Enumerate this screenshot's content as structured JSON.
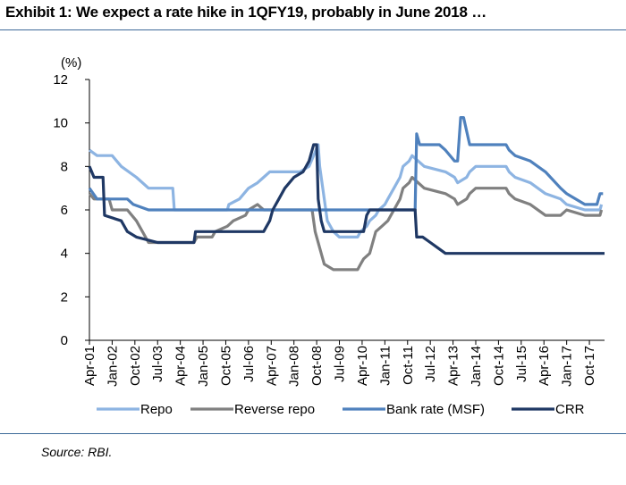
{
  "header": {
    "title": "Exhibit 1:  We expect a rate hike in 1QFY19, probably in June 2018 …"
  },
  "footer": {
    "source": "Source: RBI."
  },
  "chart_data": {
    "type": "line",
    "title": "Exhibit 1:  We expect a rate hike in 1QFY19, probably in June 2018 …",
    "unit_label": "(%)",
    "xlabel": "",
    "ylabel": "",
    "ylim": [
      0,
      12
    ],
    "yticks": [
      "0",
      "2",
      "4",
      "6",
      "8",
      "10",
      "12"
    ],
    "xlim": [
      2001.25,
      2018.25
    ],
    "xtick_labels": [
      "Apr-01",
      "Jan-02",
      "Oct-02",
      "Jul-03",
      "Apr-04",
      "Jan-05",
      "Oct-05",
      "Jul-06",
      "Apr-07",
      "Jan-08",
      "Oct-08",
      "Jul-09",
      "Apr-10",
      "Jan-11",
      "Oct-11",
      "Jul-12",
      "Apr-13",
      "Jan-14",
      "Oct-14",
      "Jul-15",
      "Apr-16",
      "Jan-17",
      "Oct-17"
    ],
    "grid": false,
    "legend_position": "bottom",
    "series": [
      {
        "name": "Repo",
        "color": "#8db4e2",
        "points": [
          [
            2001.25,
            8.75
          ],
          [
            2001.5,
            8.5
          ],
          [
            2002.0,
            8.5
          ],
          [
            2002.3,
            8.0
          ],
          [
            2002.8,
            7.5
          ],
          [
            2003.2,
            7.0
          ],
          [
            2004.0,
            7.0
          ],
          [
            2004.05,
            6.0
          ],
          [
            2005.8,
            6.0
          ],
          [
            2005.85,
            6.25
          ],
          [
            2006.2,
            6.5
          ],
          [
            2006.5,
            7.0
          ],
          [
            2006.8,
            7.25
          ],
          [
            2007.0,
            7.5
          ],
          [
            2007.2,
            7.75
          ],
          [
            2008.2,
            7.75
          ],
          [
            2008.5,
            8.0
          ],
          [
            2008.65,
            8.5
          ],
          [
            2008.8,
            9.0
          ],
          [
            2008.85,
            8.0
          ],
          [
            2008.9,
            7.5
          ],
          [
            2009.0,
            6.5
          ],
          [
            2009.1,
            5.5
          ],
          [
            2009.3,
            5.0
          ],
          [
            2009.5,
            4.75
          ],
          [
            2010.1,
            4.75
          ],
          [
            2010.2,
            5.0
          ],
          [
            2010.4,
            5.25
          ],
          [
            2010.5,
            5.5
          ],
          [
            2010.7,
            5.75
          ],
          [
            2010.8,
            6.0
          ],
          [
            2011.0,
            6.25
          ],
          [
            2011.1,
            6.5
          ],
          [
            2011.3,
            7.0
          ],
          [
            2011.5,
            7.5
          ],
          [
            2011.6,
            8.0
          ],
          [
            2011.8,
            8.25
          ],
          [
            2011.9,
            8.5
          ],
          [
            2012.3,
            8.0
          ],
          [
            2013.0,
            7.75
          ],
          [
            2013.3,
            7.5
          ],
          [
            2013.4,
            7.25
          ],
          [
            2013.7,
            7.5
          ],
          [
            2013.8,
            7.75
          ],
          [
            2014.0,
            8.0
          ],
          [
            2015.0,
            8.0
          ],
          [
            2015.1,
            7.75
          ],
          [
            2015.3,
            7.5
          ],
          [
            2015.8,
            7.25
          ],
          [
            2016.3,
            6.75
          ],
          [
            2016.8,
            6.5
          ],
          [
            2017.0,
            6.25
          ],
          [
            2017.6,
            6.0
          ],
          [
            2018.1,
            6.0
          ],
          [
            2018.15,
            6.25
          ]
        ]
      },
      {
        "name": "Reverse repo",
        "color": "#808080",
        "points": [
          [
            2001.25,
            6.75
          ],
          [
            2001.4,
            6.5
          ],
          [
            2001.9,
            6.5
          ],
          [
            2002.0,
            6.0
          ],
          [
            2002.5,
            6.0
          ],
          [
            2002.8,
            5.5
          ],
          [
            2003.0,
            5.0
          ],
          [
            2003.2,
            4.5
          ],
          [
            2004.7,
            4.5
          ],
          [
            2004.8,
            4.75
          ],
          [
            2005.3,
            4.75
          ],
          [
            2005.4,
            5.0
          ],
          [
            2005.8,
            5.25
          ],
          [
            2006.0,
            5.5
          ],
          [
            2006.4,
            5.75
          ],
          [
            2006.5,
            6.0
          ],
          [
            2006.8,
            6.25
          ],
          [
            2007.0,
            6.0
          ],
          [
            2008.6,
            6.0
          ],
          [
            2008.7,
            5.0
          ],
          [
            2008.9,
            4.0
          ],
          [
            2009.0,
            3.5
          ],
          [
            2009.3,
            3.25
          ],
          [
            2010.1,
            3.25
          ],
          [
            2010.2,
            3.5
          ],
          [
            2010.3,
            3.75
          ],
          [
            2010.5,
            4.0
          ],
          [
            2010.6,
            4.5
          ],
          [
            2010.7,
            5.0
          ],
          [
            2010.9,
            5.25
          ],
          [
            2011.1,
            5.5
          ],
          [
            2011.3,
            6.0
          ],
          [
            2011.5,
            6.5
          ],
          [
            2011.6,
            7.0
          ],
          [
            2011.8,
            7.25
          ],
          [
            2011.9,
            7.5
          ],
          [
            2012.3,
            7.0
          ],
          [
            2013.0,
            6.75
          ],
          [
            2013.3,
            6.5
          ],
          [
            2013.4,
            6.25
          ],
          [
            2013.7,
            6.5
          ],
          [
            2013.8,
            6.75
          ],
          [
            2014.0,
            7.0
          ],
          [
            2015.0,
            7.0
          ],
          [
            2015.1,
            6.75
          ],
          [
            2015.3,
            6.5
          ],
          [
            2015.8,
            6.25
          ],
          [
            2016.3,
            5.75
          ],
          [
            2016.8,
            5.75
          ],
          [
            2017.0,
            6.0
          ],
          [
            2017.6,
            5.75
          ],
          [
            2018.1,
            5.75
          ],
          [
            2018.15,
            6.0
          ]
        ]
      },
      {
        "name": "Bank rate (MSF)",
        "color": "#4f81bd",
        "points": [
          [
            2001.25,
            7.0
          ],
          [
            2001.5,
            6.5
          ],
          [
            2002.5,
            6.5
          ],
          [
            2002.7,
            6.25
          ],
          [
            2003.2,
            6.0
          ],
          [
            2012.0,
            6.0
          ],
          [
            2012.05,
            9.5
          ],
          [
            2012.15,
            9.0
          ],
          [
            2012.8,
            9.0
          ],
          [
            2013.0,
            8.75
          ],
          [
            2013.3,
            8.25
          ],
          [
            2013.4,
            8.25
          ],
          [
            2013.5,
            10.25
          ],
          [
            2013.6,
            10.25
          ],
          [
            2013.8,
            9.0
          ],
          [
            2014.0,
            9.0
          ],
          [
            2015.0,
            9.0
          ],
          [
            2015.1,
            8.75
          ],
          [
            2015.3,
            8.5
          ],
          [
            2015.8,
            8.25
          ],
          [
            2016.3,
            7.75
          ],
          [
            2016.8,
            7.0
          ],
          [
            2017.0,
            6.75
          ],
          [
            2017.6,
            6.25
          ],
          [
            2018.0,
            6.25
          ],
          [
            2018.1,
            6.75
          ],
          [
            2018.2,
            6.75
          ]
        ]
      },
      {
        "name": "CRR",
        "color": "#1f3864",
        "points": [
          [
            2001.25,
            8.0
          ],
          [
            2001.4,
            7.5
          ],
          [
            2001.7,
            7.5
          ],
          [
            2001.75,
            5.75
          ],
          [
            2002.3,
            5.5
          ],
          [
            2002.5,
            5.0
          ],
          [
            2002.8,
            4.75
          ],
          [
            2003.5,
            4.5
          ],
          [
            2004.7,
            4.5
          ],
          [
            2004.75,
            5.0
          ],
          [
            2007.0,
            5.0
          ],
          [
            2007.2,
            5.5
          ],
          [
            2007.3,
            6.0
          ],
          [
            2007.5,
            6.5
          ],
          [
            2007.7,
            7.0
          ],
          [
            2008.0,
            7.5
          ],
          [
            2008.3,
            7.75
          ],
          [
            2008.5,
            8.25
          ],
          [
            2008.65,
            9.0
          ],
          [
            2008.75,
            9.0
          ],
          [
            2008.8,
            6.5
          ],
          [
            2008.9,
            5.5
          ],
          [
            2009.0,
            5.0
          ],
          [
            2010.3,
            5.0
          ],
          [
            2010.4,
            5.75
          ],
          [
            2010.5,
            6.0
          ],
          [
            2012.0,
            6.0
          ],
          [
            2012.05,
            4.75
          ],
          [
            2012.25,
            4.75
          ],
          [
            2012.5,
            4.5
          ],
          [
            2012.75,
            4.25
          ],
          [
            2013.0,
            4.0
          ],
          [
            2018.25,
            4.0
          ]
        ]
      }
    ]
  }
}
